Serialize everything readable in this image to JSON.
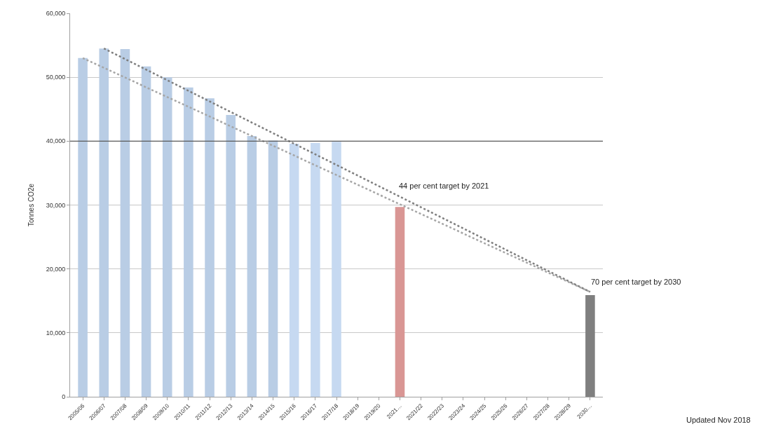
{
  "chart_data": {
    "type": "bar",
    "ylabel": "Tonnes CO2e",
    "categories": [
      "2005/06",
      "2006/07",
      "2007/08",
      "2008/09",
      "2009/10",
      "2010/11",
      "2011/12",
      "2012/13",
      "2013/14",
      "2014/15",
      "2015/16",
      "2016/17",
      "2017/18",
      "2018/19",
      "2019/20",
      "2021…",
      "2021/22",
      "2022/23",
      "2023/24",
      "2024/25",
      "2025/26",
      "2026/27",
      "2027/28",
      "2028/29",
      "2030…"
    ],
    "values": [
      53000,
      54500,
      54400,
      51700,
      50000,
      48400,
      46700,
      44100,
      40800,
      40100,
      39600,
      39700,
      39900,
      null,
      null,
      29700,
      null,
      null,
      null,
      null,
      null,
      null,
      null,
      null,
      15900
    ],
    "colors": [
      "#b9cde5",
      "#b9cde5",
      "#b9cde5",
      "#b9cde5",
      "#b9cde5",
      "#b9cde5",
      "#b9cde5",
      "#b9cde5",
      "#b9cde5",
      "#b9cde5",
      "#c6d9f1",
      "#c6d9f1",
      "#c6d9f1",
      null,
      null,
      "#d99694",
      null,
      null,
      null,
      null,
      null,
      null,
      null,
      null,
      "#7f7f7f"
    ],
    "series": [
      {
        "type": "line",
        "color": "#a6a6a6",
        "line_style": "dotted",
        "x": [
          "2005/06",
          "2030…"
        ],
        "values": [
          53000,
          16400
        ]
      },
      {
        "type": "line",
        "color": "#7f7f7f",
        "line_style": "dotted",
        "x": [
          "2006/07",
          "2030…"
        ],
        "values": [
          54500,
          16400
        ]
      }
    ],
    "ylim": [
      0,
      60000
    ],
    "yticks": [
      {
        "value": 0,
        "label": "0"
      },
      {
        "value": 10000,
        "label": "10,000"
      },
      {
        "value": 20000,
        "label": "20,000"
      },
      {
        "value": 30000,
        "label": "30,000"
      },
      {
        "value": 40000,
        "label": "40,000"
      },
      {
        "value": 50000,
        "label": "50,000"
      },
      {
        "value": 60000,
        "label": "60,000"
      }
    ],
    "grid": "y",
    "ref_lines": [
      {
        "axis": "y",
        "value": 40000,
        "color": "#595959"
      }
    ],
    "annotations": [
      "44 per cent target by 2021",
      "70 per cent target by 2030",
      "Updated Nov 2018"
    ]
  }
}
